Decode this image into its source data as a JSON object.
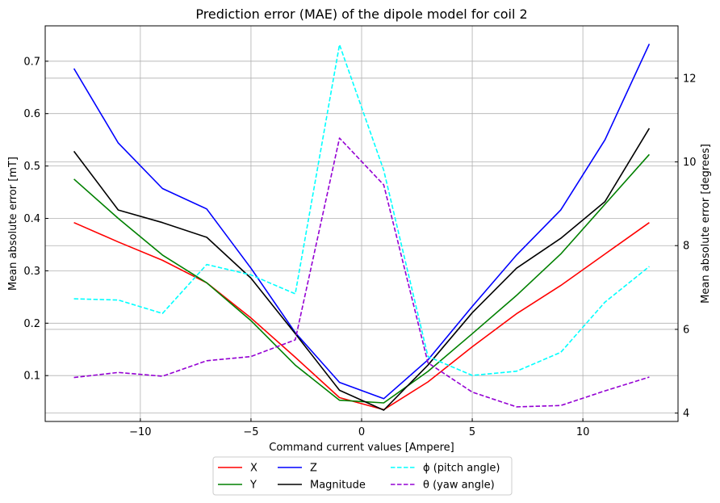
{
  "chart_data": {
    "type": "line",
    "title": "Prediction error (MAE) of the dipole model for coil 2",
    "xlabel": "Command current values [Ampere]",
    "ylabel_left": "Mean absolute error [mT]",
    "ylabel_right": "Mean absolute error [degrees]",
    "xlim": [
      -14.3,
      14.3
    ],
    "ylim_left": [
      0.0125,
      0.7675
    ],
    "ylim_right": [
      3.8,
      13.25
    ],
    "x_ticks": [
      -10,
      -5,
      0,
      5,
      10
    ],
    "x_tick_labels": [
      "−10",
      "−5",
      "0",
      "5",
      "10"
    ],
    "y_left_ticks": [
      0.1,
      0.2,
      0.3,
      0.4,
      0.5,
      0.6,
      0.7
    ],
    "y_left_tick_labels": [
      "0.1",
      "0.2",
      "0.3",
      "0.4",
      "0.5",
      "0.6",
      "0.7"
    ],
    "y_right_ticks": [
      4,
      6,
      8,
      10,
      12
    ],
    "y_right_tick_labels": [
      "4",
      "6",
      "8",
      "10",
      "12"
    ],
    "grid": true,
    "legend_position": "below",
    "x": [
      -13,
      -11,
      -9,
      -7,
      -5,
      -3,
      -1,
      1,
      3,
      5,
      7,
      9,
      11,
      13
    ],
    "series": [
      {
        "name": "X",
        "axis": "left",
        "color": "#ff0000",
        "dash": "solid",
        "values": [
          0.392,
          0.355,
          0.32,
          0.277,
          0.21,
          0.135,
          0.058,
          0.035,
          0.088,
          0.155,
          0.218,
          0.272,
          0.332,
          0.392
        ]
      },
      {
        "name": "Y",
        "axis": "left",
        "color": "#008000",
        "dash": "solid",
        "values": [
          0.475,
          0.4,
          0.33,
          0.277,
          0.205,
          0.12,
          0.053,
          0.048,
          0.108,
          0.18,
          0.253,
          0.332,
          0.427,
          0.522
        ]
      },
      {
        "name": "Z",
        "axis": "left",
        "color": "#0000ff",
        "dash": "solid",
        "values": [
          0.686,
          0.544,
          0.457,
          0.418,
          0.305,
          0.182,
          0.087,
          0.056,
          0.13,
          0.232,
          0.33,
          0.416,
          0.55,
          0.733
        ]
      },
      {
        "name": "Magnitude",
        "axis": "left",
        "color": "#000000",
        "dash": "solid",
        "values": [
          0.528,
          0.416,
          0.392,
          0.364,
          0.286,
          0.18,
          0.072,
          0.034,
          0.12,
          0.22,
          0.305,
          0.362,
          0.432,
          0.572
        ]
      },
      {
        "name": "ϕ (pitch angle)",
        "axis": "right",
        "color": "#00ffff",
        "dash": "dashed",
        "values": [
          6.73,
          6.7,
          6.38,
          7.55,
          7.3,
          6.85,
          12.8,
          9.8,
          5.35,
          4.9,
          5.0,
          5.45,
          6.65,
          7.5
        ]
      },
      {
        "name": "θ (yaw angle)",
        "axis": "right",
        "color": "#9400d3",
        "dash": "dashed",
        "values": [
          4.85,
          4.97,
          4.88,
          5.25,
          5.35,
          5.75,
          10.57,
          9.45,
          5.2,
          4.5,
          4.15,
          4.18,
          4.53,
          4.86
        ]
      }
    ]
  }
}
